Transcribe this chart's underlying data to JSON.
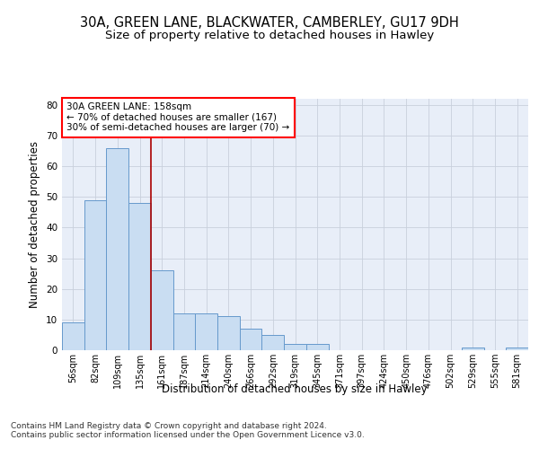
{
  "title1": "30A, GREEN LANE, BLACKWATER, CAMBERLEY, GU17 9DH",
  "title2": "Size of property relative to detached houses in Hawley",
  "xlabel": "Distribution of detached houses by size in Hawley",
  "ylabel": "Number of detached properties",
  "bar_values": [
    9,
    49,
    66,
    48,
    26,
    12,
    12,
    11,
    7,
    5,
    2,
    2,
    0,
    0,
    0,
    0,
    0,
    0,
    1,
    0,
    1
  ],
  "bin_labels": [
    "56sqm",
    "82sqm",
    "109sqm",
    "135sqm",
    "161sqm",
    "187sqm",
    "214sqm",
    "240sqm",
    "266sqm",
    "292sqm",
    "319sqm",
    "345sqm",
    "371sqm",
    "397sqm",
    "424sqm",
    "450sqm",
    "476sqm",
    "502sqm",
    "529sqm",
    "555sqm",
    "581sqm"
  ],
  "bar_color": "#c9ddf2",
  "bar_edge_color": "#6699cc",
  "grid_color": "#c8d0dc",
  "bg_color": "#e8eef8",
  "vline_x": 3.5,
  "vline_color": "#aa0000",
  "annotation_line1": "30A GREEN LANE: 158sqm",
  "annotation_line2": "← 70% of detached houses are smaller (167)",
  "annotation_line3": "30% of semi-detached houses are larger (70) →",
  "annotation_box_color": "red",
  "ylim": [
    0,
    82
  ],
  "yticks": [
    0,
    10,
    20,
    30,
    40,
    50,
    60,
    70,
    80
  ],
  "footnote": "Contains HM Land Registry data © Crown copyright and database right 2024.\nContains public sector information licensed under the Open Government Licence v3.0.",
  "title_fontsize": 10.5,
  "subtitle_fontsize": 9.5,
  "label_fontsize": 8.5,
  "tick_fontsize": 7.5,
  "annot_fontsize": 7.5,
  "footnote_fontsize": 6.5
}
